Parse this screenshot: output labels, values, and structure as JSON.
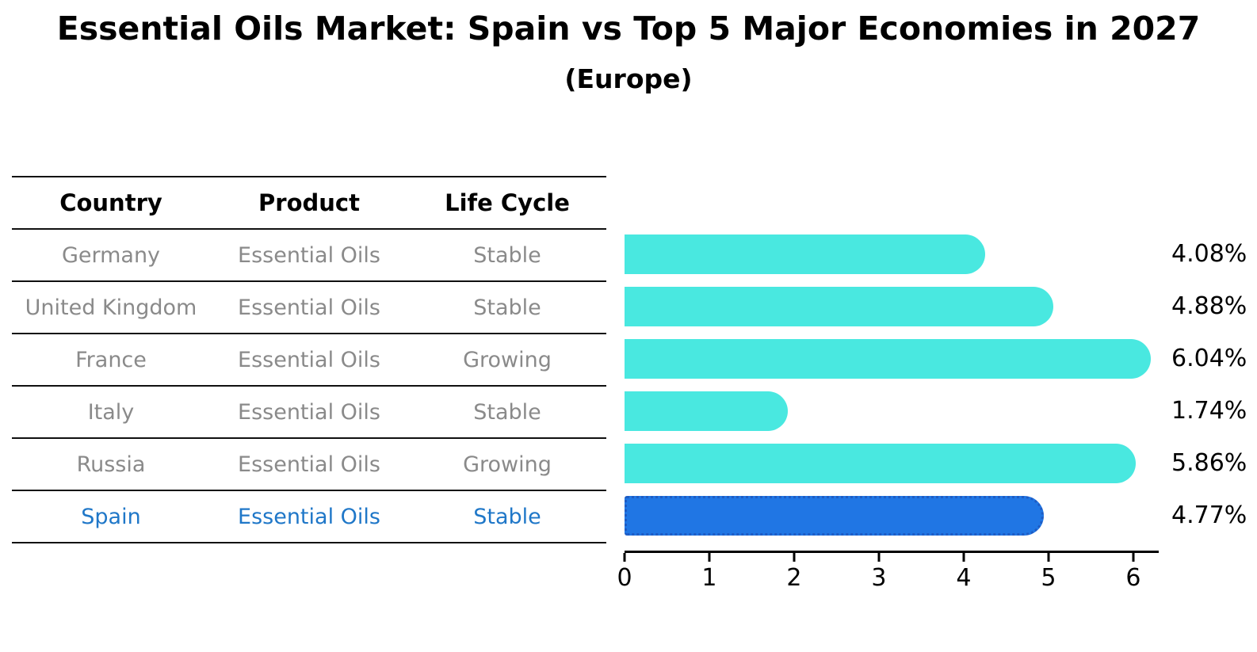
{
  "title": "Essential Oils Market: Spain vs Top 5 Major Economies in 2027",
  "subtitle": "(Europe)",
  "table": {
    "headers": [
      "Country",
      "Product",
      "Life Cycle"
    ],
    "rows": [
      {
        "country": "Germany",
        "product": "Essential Oils",
        "life_cycle": "Stable",
        "highlighted": false
      },
      {
        "country": "United Kingdom",
        "product": "Essential Oils",
        "life_cycle": "Stable",
        "highlighted": false
      },
      {
        "country": "France",
        "product": "Essential Oils",
        "life_cycle": "Growing",
        "highlighted": false
      },
      {
        "country": "Italy",
        "product": "Essential Oils",
        "life_cycle": "Stable",
        "highlighted": false
      },
      {
        "country": "Russia",
        "product": "Essential Oils",
        "life_cycle": "Growing",
        "highlighted": false
      },
      {
        "country": "Spain",
        "product": "Essential Oils",
        "life_cycle": "Stable",
        "highlighted": true
      }
    ]
  },
  "chart_data": {
    "type": "bar",
    "orientation": "horizontal",
    "title": "Essential Oils Market: Spain vs Top 5 Major Economies in 2027",
    "subtitle": "(Europe)",
    "categories": [
      "Germany",
      "United Kingdom",
      "France",
      "Italy",
      "Russia",
      "Spain"
    ],
    "values": [
      4.08,
      4.88,
      6.04,
      1.74,
      5.86,
      4.77
    ],
    "value_labels": [
      "4.08%",
      "4.88%",
      "6.04%",
      "1.74%",
      "5.86%",
      "4.77%"
    ],
    "xlabel": "",
    "ylabel": "",
    "xlim": [
      0,
      6.3
    ],
    "x_ticks": [
      0,
      1,
      2,
      3,
      4,
      5,
      6
    ],
    "grid": false,
    "legend": false,
    "bar_color": "#49e8e0",
    "highlight_index": 5,
    "highlight_bar_color": "#2076e4",
    "highlight_border_color": "#1e5cc4",
    "highlight_text_color": "#1f77c8"
  }
}
